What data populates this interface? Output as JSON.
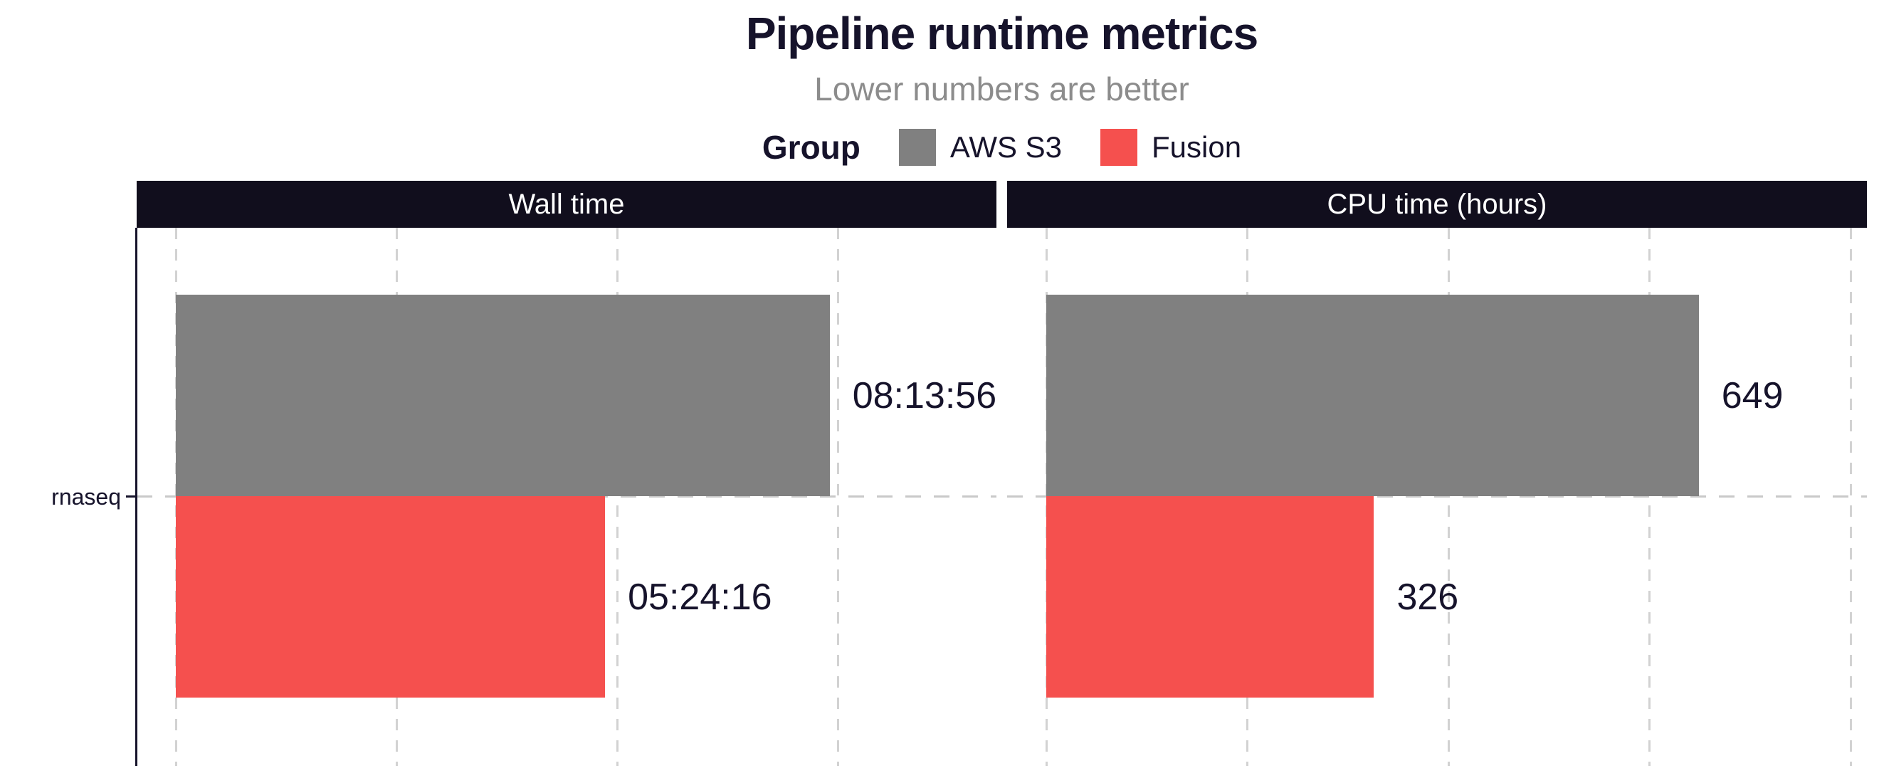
{
  "colors": {
    "title_text": "#16132b",
    "subtitle_text": "#8c8c8c",
    "strip_bg": "#110e1d",
    "strip_text": "#ffffff",
    "gridline": "#d2d2d2",
    "reference_line": "#c9c9c9",
    "axis": "#16132b",
    "bar_aws_s3": "#808080",
    "bar_fusion": "#f5504e"
  },
  "chart_data": {
    "type": "bar",
    "orientation": "horizontal",
    "title": "Pipeline runtime metrics",
    "subtitle": "Lower numbers are better",
    "legend": {
      "title": "Group",
      "position": "top",
      "entries": [
        {
          "label": "AWS S3",
          "color": "#808080"
        },
        {
          "label": "Fusion",
          "color": "#f5504e"
        }
      ]
    },
    "category_axis": {
      "categories": [
        "rnaseq"
      ]
    },
    "grid": "dashed-vertical",
    "facets": [
      {
        "title": "Wall time",
        "value_unit": "seconds",
        "axis_gridline_values": [
          0,
          10000,
          20000,
          30000
        ],
        "series": [
          {
            "group": "AWS S3",
            "category": "rnaseq",
            "value": 29636,
            "label": "08:13:56"
          },
          {
            "group": "Fusion",
            "category": "rnaseq",
            "value": 19456,
            "label": "05:24:16"
          }
        ]
      },
      {
        "title": "CPU time (hours)",
        "value_unit": "hours",
        "axis_gridline_values": [
          0,
          200,
          400,
          600,
          800
        ],
        "series": [
          {
            "group": "AWS S3",
            "category": "rnaseq",
            "value": 649,
            "label": "649"
          },
          {
            "group": "Fusion",
            "category": "rnaseq",
            "value": 326,
            "label": "326"
          }
        ]
      }
    ]
  }
}
